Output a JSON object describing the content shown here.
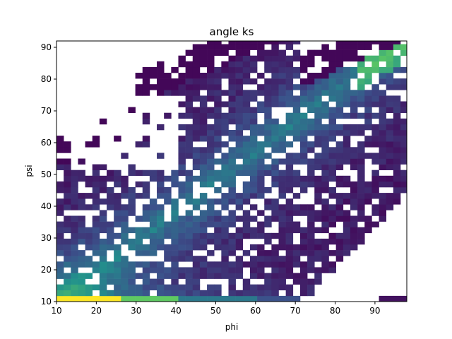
{
  "chart_data": {
    "type": "heatmap",
    "title": "angle ks",
    "xlabel": "phi",
    "ylabel": "psi",
    "xlim": [
      10,
      98
    ],
    "ylim": [
      10,
      92
    ],
    "x_ticks": [
      "10",
      "20",
      "30",
      "40",
      "50",
      "60",
      "70",
      "80",
      "90"
    ],
    "y_ticks": [
      "10",
      "20",
      "30",
      "40",
      "50",
      "60",
      "70",
      "80",
      "90"
    ],
    "bin_width": 1.8,
    "bin_height": 1.8,
    "colormap": "viridis",
    "empty_color": "#ffffff",
    "count_scale": "relative 0-1",
    "description_of_distribution": [
      {
        "psi_range": [
          10,
          11
        ],
        "phi_range": [
          10,
          26
        ],
        "density": 1.0
      },
      {
        "psi_range": [
          10,
          11
        ],
        "phi_range": [
          26,
          40
        ],
        "density": 0.7
      },
      {
        "psi_range": [
          10,
          11
        ],
        "phi_range": [
          40,
          60
        ],
        "density": 0.35
      },
      {
        "psi_range": [
          10,
          11
        ],
        "phi_range": [
          91,
          98
        ],
        "density": 0.05
      }
    ],
    "populated_region": {
      "phi_range": [
        10,
        98
      ],
      "psi_range": [
        10,
        92
      ],
      "diagonal_ridge": {
        "from": [
          10,
          10
        ],
        "to": [
          97,
          92
        ]
      }
    }
  }
}
